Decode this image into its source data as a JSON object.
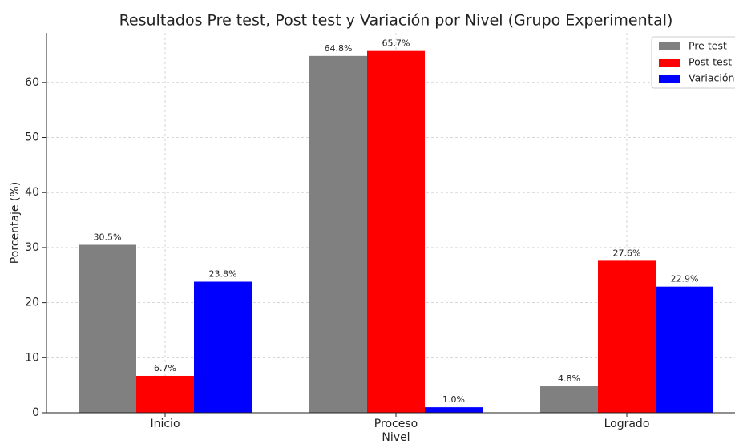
{
  "chart_data": {
    "type": "bar",
    "title": "Resultados Pre test, Post test y Variación por Nivel (Grupo Experimental)",
    "xlabel": "Nivel",
    "ylabel": "Porcentaje (%)",
    "categories": [
      "Inicio",
      "Proceso",
      "Logrado"
    ],
    "series": [
      {
        "name": "Pre test",
        "color": "#808080",
        "values": [
          30.5,
          64.8,
          4.8
        ],
        "value_labels": [
          "30.5%",
          "64.8%",
          "4.8%"
        ]
      },
      {
        "name": "Post test",
        "color": "#ff0000",
        "values": [
          6.7,
          65.7,
          27.6
        ],
        "value_labels": [
          "6.7%",
          "65.7%",
          "27.6%"
        ]
      },
      {
        "name": "Variación",
        "color": "#0000ff",
        "values": [
          23.8,
          1.0,
          22.9
        ],
        "value_labels": [
          "23.8%",
          "1.0%",
          "22.9%"
        ]
      }
    ],
    "ylim": [
      0,
      69
    ],
    "yticks": [
      0,
      10,
      20,
      30,
      40,
      50,
      60
    ],
    "grid": true,
    "legend": "upper right"
  }
}
